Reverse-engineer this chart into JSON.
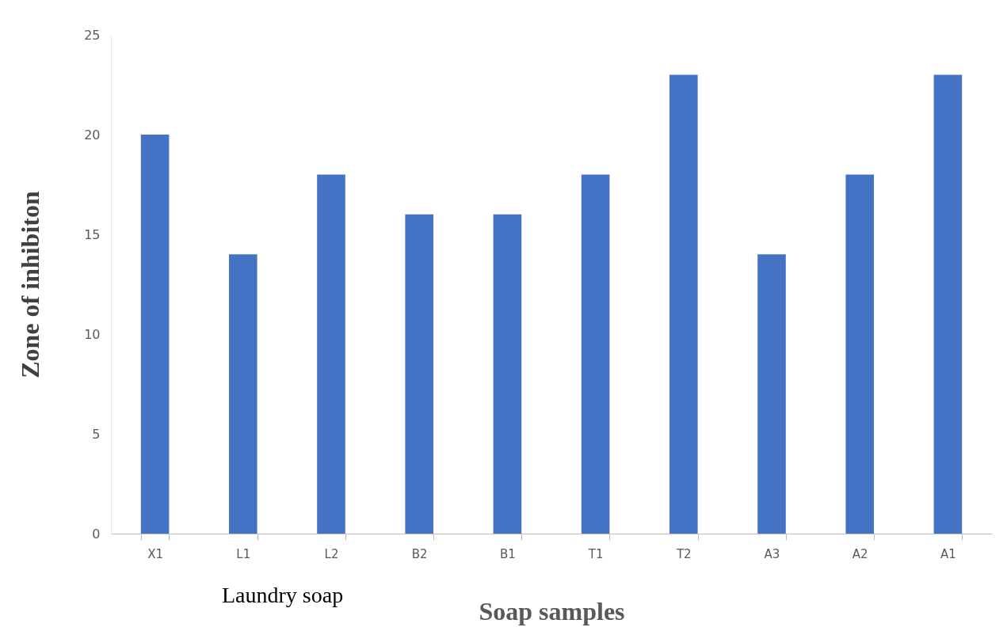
{
  "chart_data": {
    "type": "bar",
    "xlabel": "Soap samples",
    "ylabel": "Zone of inhibiton",
    "categories": [
      "X1",
      "L1",
      "L2",
      "B2",
      "B1",
      "T1",
      "T2",
      "A3",
      "A2",
      "A1"
    ],
    "values": [
      20,
      14,
      18,
      16,
      16,
      18,
      23,
      14,
      18,
      23
    ],
    "color": "#4472c4",
    "ylim": [
      0,
      25
    ],
    "yticks": [
      0,
      5,
      10,
      15,
      20,
      25
    ],
    "grid": false,
    "annotations": [
      "Laundry soap"
    ]
  }
}
